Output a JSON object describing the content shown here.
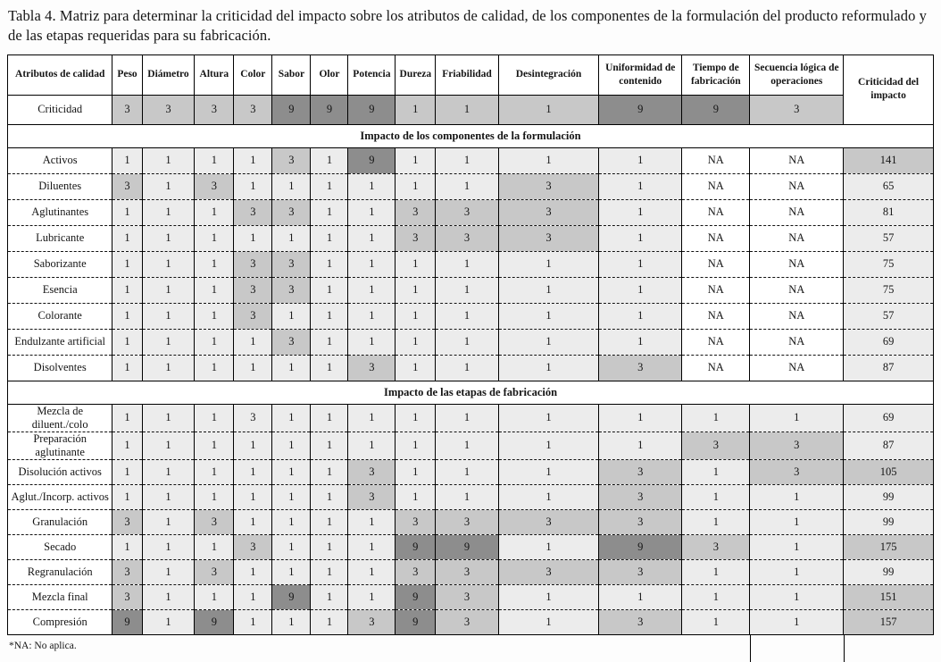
{
  "title": "Tabla 4. Matriz para determinar la criticidad del impacto sobre los atributos de calidad, de los componentes de la formulación del producto reformulado y de las etapas requeridas para su fabricación.",
  "footnote": "*NA: No aplica.",
  "colors": {
    "shade_light": "#ececec",
    "shade_medium": "#c8c8c8",
    "shade_dark": "#8d8d8d",
    "border": "#000000"
  },
  "table": {
    "columns": [
      "Atributos de calidad",
      "Peso",
      "Diámetro",
      "Altura",
      "Color",
      "Sabor",
      "Olor",
      "Potencia",
      "Dureza",
      "Friabilidad",
      "Desintegración",
      "Uniformidad de contenido",
      "Tiempo de fabricación",
      "Secuencia lógica de operaciones",
      "Criticidad del impacto"
    ],
    "criticality_row": {
      "label": "Criticidad",
      "values": [
        "3",
        "3",
        "3",
        "3",
        "9",
        "9",
        "9",
        "1",
        "1",
        "1",
        "9",
        "9",
        "3"
      ]
    },
    "sections": [
      {
        "header": "Impacto de los componentes de la formulación",
        "rows": [
          {
            "label": "Activos",
            "values": [
              "1",
              "1",
              "1",
              "1",
              "3",
              "1",
              "9",
              "1",
              "1",
              "1",
              "1",
              "NA",
              "NA"
            ],
            "impact": "141",
            "impact_shaded": true
          },
          {
            "label": "Diluentes",
            "values": [
              "3",
              "1",
              "3",
              "1",
              "1",
              "1",
              "1",
              "1",
              "1",
              "3",
              "1",
              "NA",
              "NA"
            ],
            "impact": "65",
            "impact_shaded": false
          },
          {
            "label": "Aglutinantes",
            "values": [
              "1",
              "1",
              "1",
              "3",
              "3",
              "1",
              "1",
              "3",
              "3",
              "3",
              "1",
              "NA",
              "NA"
            ],
            "impact": "81",
            "impact_shaded": false
          },
          {
            "label": "Lubricante",
            "values": [
              "1",
              "1",
              "1",
              "1",
              "1",
              "1",
              "1",
              "3",
              "3",
              "3",
              "1",
              "NA",
              "NA"
            ],
            "impact": "57",
            "impact_shaded": false
          },
          {
            "label": "Saborizante",
            "values": [
              "1",
              "1",
              "1",
              "3",
              "3",
              "1",
              "1",
              "1",
              "1",
              "1",
              "1",
              "NA",
              "NA"
            ],
            "impact": "75",
            "impact_shaded": false
          },
          {
            "label": "Esencia",
            "values": [
              "1",
              "1",
              "1",
              "3",
              "3",
              "1",
              "1",
              "1",
              "1",
              "1",
              "1",
              "NA",
              "NA"
            ],
            "impact": "75",
            "impact_shaded": false
          },
          {
            "label": "Colorante",
            "values": [
              "1",
              "1",
              "1",
              "3",
              "1",
              "1",
              "1",
              "1",
              "1",
              "1",
              "1",
              "NA",
              "NA"
            ],
            "impact": "57",
            "impact_shaded": false
          },
          {
            "label": "Endulzante artificial",
            "values": [
              "1",
              "1",
              "1",
              "1",
              "3",
              "1",
              "1",
              "1",
              "1",
              "1",
              "1",
              "NA",
              "NA"
            ],
            "impact": "69",
            "impact_shaded": false
          },
          {
            "label": "Disolventes",
            "values": [
              "1",
              "1",
              "1",
              "1",
              "1",
              "1",
              "3",
              "1",
              "1",
              "1",
              "3",
              "NA",
              "NA"
            ],
            "impact": "87",
            "impact_shaded": false
          }
        ]
      },
      {
        "header": "Impacto de las etapas de fabricación",
        "rows": [
          {
            "label": "Mezcla de diluent./colo",
            "values": [
              "1",
              "1",
              "1",
              "3",
              "1",
              "1",
              "1",
              "1",
              "1",
              "1",
              "1",
              "1",
              "1"
            ],
            "impact": "69",
            "impact_shaded": false,
            "light_overrides": [
              3
            ]
          },
          {
            "label": "Preparación aglutinante",
            "values": [
              "1",
              "1",
              "1",
              "1",
              "1",
              "1",
              "1",
              "1",
              "1",
              "1",
              "1",
              "3",
              "3"
            ],
            "impact": "87",
            "impact_shaded": false
          },
          {
            "label": "Disolución activos",
            "values": [
              "1",
              "1",
              "1",
              "1",
              "1",
              "1",
              "3",
              "1",
              "1",
              "1",
              "3",
              "1",
              "3"
            ],
            "impact": "105",
            "impact_shaded": true
          },
          {
            "label": "Aglut./Incorp. activos",
            "values": [
              "1",
              "1",
              "1",
              "1",
              "1",
              "1",
              "3",
              "1",
              "1",
              "1",
              "3",
              "1",
              "1"
            ],
            "impact": "99",
            "impact_shaded": false
          },
          {
            "label": "Granulación",
            "values": [
              "3",
              "1",
              "3",
              "1",
              "1",
              "1",
              "1",
              "3",
              "3",
              "3",
              "3",
              "1",
              "1"
            ],
            "impact": "99",
            "impact_shaded": false
          },
          {
            "label": "Secado",
            "values": [
              "1",
              "1",
              "1",
              "3",
              "1",
              "1",
              "1",
              "9",
              "9",
              "1",
              "9",
              "3",
              "1"
            ],
            "impact": "175",
            "impact_shaded": true
          },
          {
            "label": "Regranulación",
            "values": [
              "3",
              "1",
              "3",
              "1",
              "1",
              "1",
              "1",
              "3",
              "3",
              "3",
              "3",
              "1",
              "1"
            ],
            "impact": "99",
            "impact_shaded": false
          },
          {
            "label": "Mezcla final",
            "values": [
              "3",
              "1",
              "1",
              "1",
              "9",
              "1",
              "1",
              "9",
              "3",
              "1",
              "1",
              "1",
              "1"
            ],
            "impact": "151",
            "impact_shaded": true
          },
          {
            "label": "Compresión",
            "values": [
              "9",
              "1",
              "9",
              "1",
              "1",
              "1",
              "3",
              "9",
              "3",
              "1",
              "3",
              "1",
              "1"
            ],
            "impact": "157",
            "impact_shaded": true
          }
        ]
      }
    ]
  }
}
